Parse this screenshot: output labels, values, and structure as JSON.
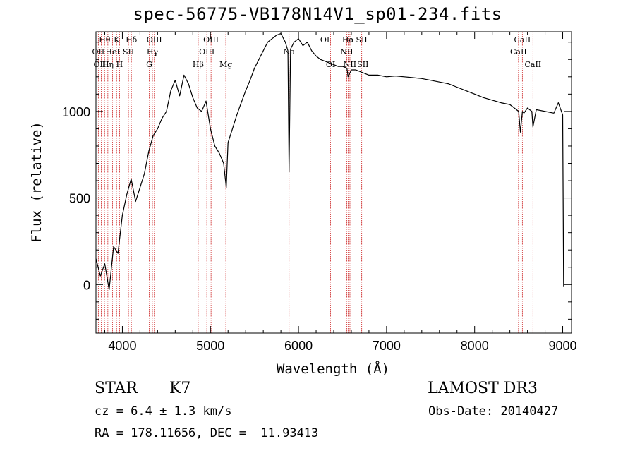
{
  "header": {
    "title": "spec-56775-VB178N14V1_sp01-234.fits"
  },
  "classification": {
    "class": "STAR",
    "subclass": "K7"
  },
  "info": {
    "survey": "LAMOST DR3",
    "cz": "cz = 6.4 ± 1.3 km/s",
    "obs_date": "Obs-Date: 20140427",
    "radec": "RA = 178.11656, DEC =  11.93413"
  },
  "colors": {
    "line_marker": "#cc2222",
    "spectrum": "#000000"
  },
  "chart_data": {
    "type": "line",
    "title": "spec-56775-VB178N14V1_sp01-234.fits",
    "xlabel": "Wavelength (Å)",
    "ylabel": "Flux (relative)",
    "xlim": [
      3700,
      9100
    ],
    "ylim": [
      -280,
      1460
    ],
    "xticks": [
      4000,
      5000,
      6000,
      7000,
      8000,
      9000
    ],
    "yticks": [
      0,
      500,
      1000
    ],
    "spectrum": {
      "wavelength": [
        3700,
        3750,
        3800,
        3850,
        3900,
        3950,
        4000,
        4050,
        4100,
        4150,
        4200,
        4250,
        4300,
        4350,
        4400,
        4450,
        4500,
        4550,
        4600,
        4650,
        4700,
        4750,
        4800,
        4850,
        4900,
        4950,
        5000,
        5050,
        5100,
        5150,
        5180,
        5200,
        5250,
        5300,
        5350,
        5400,
        5450,
        5500,
        5550,
        5600,
        5650,
        5700,
        5750,
        5800,
        5850,
        5880,
        5893,
        5910,
        5950,
        6000,
        6050,
        6100,
        6150,
        6200,
        6250,
        6300,
        6350,
        6400,
        6450,
        6500,
        6550,
        6563,
        6600,
        6650,
        6700,
        6750,
        6800,
        6900,
        7000,
        7100,
        7200,
        7300,
        7400,
        7500,
        7600,
        7700,
        7800,
        7900,
        8000,
        8100,
        8200,
        8300,
        8400,
        8450,
        8500,
        8520,
        8542,
        8560,
        8600,
        8650,
        8662,
        8700,
        8800,
        8900,
        8950,
        9000,
        9010
      ],
      "flux": [
        150,
        50,
        120,
        -30,
        220,
        180,
        400,
        520,
        610,
        480,
        560,
        640,
        770,
        860,
        900,
        960,
        1000,
        1120,
        1180,
        1090,
        1210,
        1160,
        1080,
        1020,
        1000,
        1060,
        900,
        800,
        760,
        700,
        560,
        820,
        900,
        980,
        1050,
        1120,
        1180,
        1250,
        1300,
        1350,
        1400,
        1420,
        1440,
        1450,
        1400,
        1350,
        650,
        1360,
        1400,
        1420,
        1380,
        1400,
        1350,
        1320,
        1300,
        1290,
        1280,
        1270,
        1260,
        1260,
        1250,
        1200,
        1240,
        1240,
        1230,
        1220,
        1210,
        1210,
        1200,
        1205,
        1200,
        1195,
        1190,
        1180,
        1170,
        1160,
        1140,
        1120,
        1100,
        1080,
        1065,
        1050,
        1040,
        1020,
        1000,
        880,
        1000,
        990,
        1020,
        1000,
        910,
        1010,
        1000,
        990,
        1050,
        980,
        -10
      ]
    },
    "line_markers": [
      {
        "label": "Hθ",
        "wavelength": 3798,
        "row": 0
      },
      {
        "label": "OII",
        "wavelength": 3727,
        "row": 1
      },
      {
        "label": "OIII",
        "wavelength": 3760,
        "row": 2
      },
      {
        "label": "K",
        "wavelength": 3934,
        "row": 0
      },
      {
        "label": "Hδ",
        "wavelength": 4102,
        "row": 0
      },
      {
        "label": "HeI",
        "wavelength": 3889,
        "row": 1
      },
      {
        "label": "SII",
        "wavelength": 4069,
        "row": 1
      },
      {
        "label": "Hη",
        "wavelength": 3835,
        "row": 2
      },
      {
        "label": "H",
        "wavelength": 3968,
        "row": 2
      },
      {
        "label": "OIII",
        "wavelength": 4363,
        "row": 0
      },
      {
        "label": "Hγ",
        "wavelength": 4341,
        "row": 1
      },
      {
        "label": "G",
        "wavelength": 4305,
        "row": 2
      },
      {
        "label": "OIII",
        "wavelength": 5007,
        "row": 0
      },
      {
        "label": "OIII",
        "wavelength": 4959,
        "row": 1
      },
      {
        "label": "Hβ",
        "wavelength": 4861,
        "row": 2
      },
      {
        "label": "Mg",
        "wavelength": 5175,
        "row": 2
      },
      {
        "label": "Na",
        "wavelength": 5893,
        "row": 1
      },
      {
        "label": "OI",
        "wavelength": 6300,
        "row": 0
      },
      {
        "label": "OI",
        "wavelength": 6364,
        "row": 2
      },
      {
        "label": "Hα",
        "wavelength": 6563,
        "row": 0
      },
      {
        "label": "NII",
        "wavelength": 6548,
        "row": 1
      },
      {
        "label": "NII",
        "wavelength": 6584,
        "row": 2
      },
      {
        "label": "SII",
        "wavelength": 6717,
        "row": 0
      },
      {
        "label": "SII",
        "wavelength": 6731,
        "row": 2
      },
      {
        "label": "CaII",
        "wavelength": 8498,
        "row": 1
      },
      {
        "label": "CaII",
        "wavelength": 8542,
        "row": 0
      },
      {
        "label": "CaII",
        "wavelength": 8662,
        "row": 2
      }
    ]
  }
}
